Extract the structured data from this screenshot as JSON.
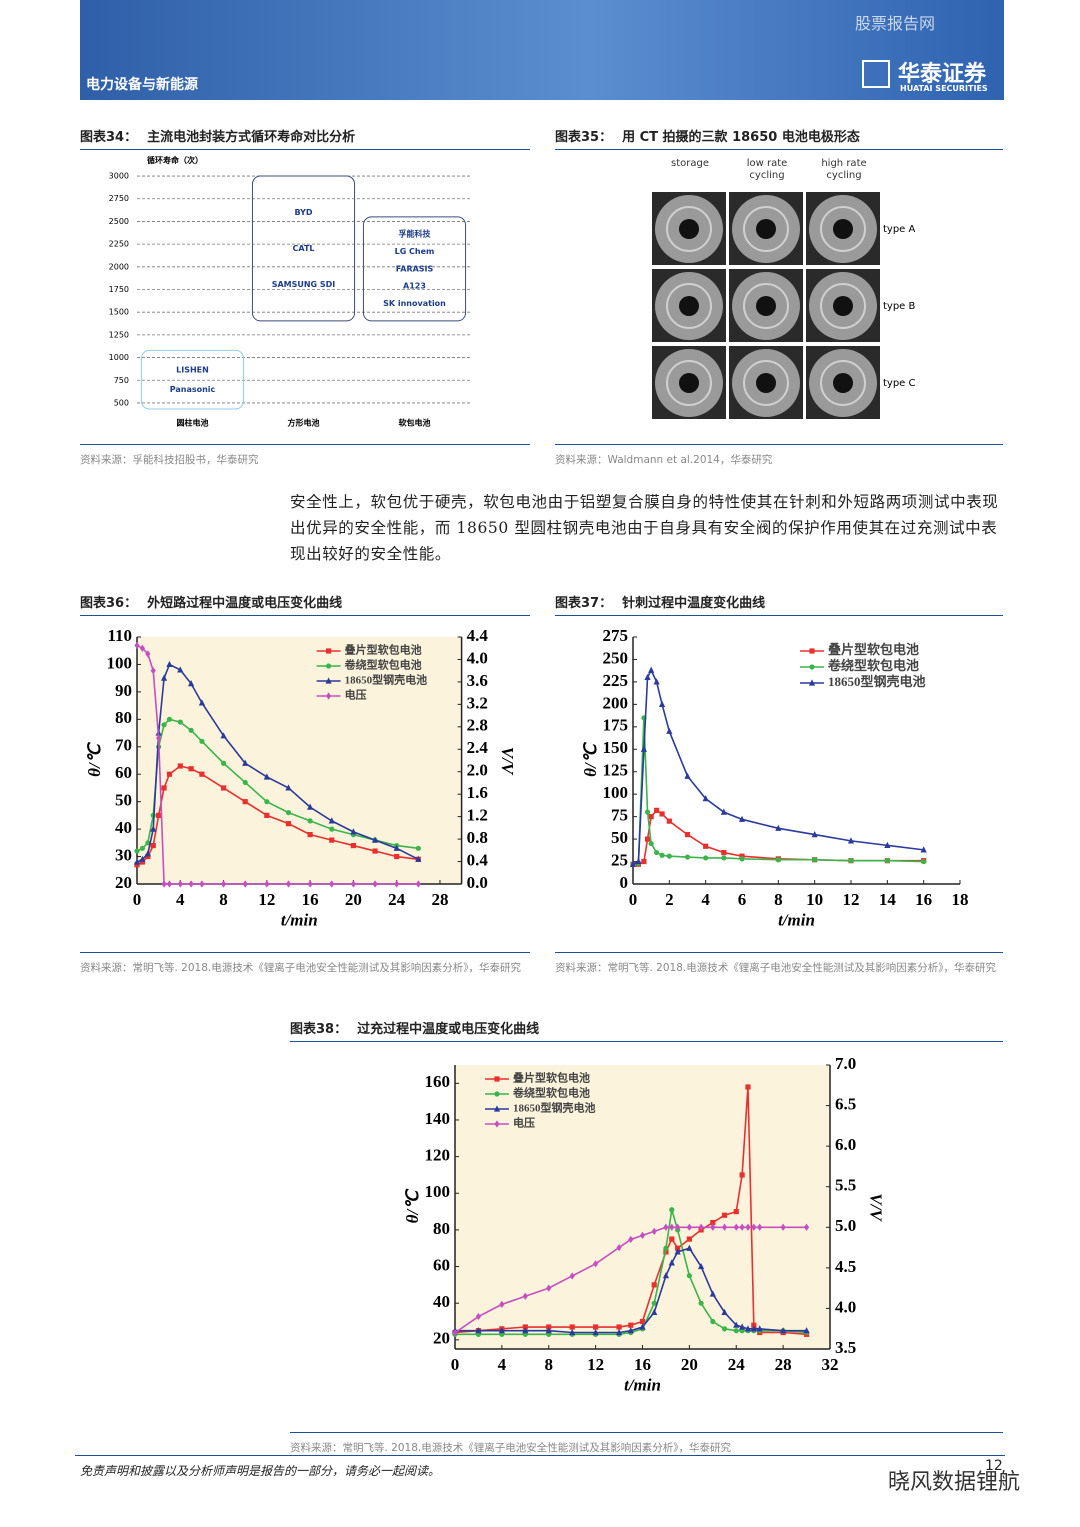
{
  "header": {
    "sector": "电力设备与新能源",
    "watermark": "股票报告网",
    "logo": "华泰证券",
    "logo_en": "HUATAI SECURITIES"
  },
  "paragraph": "安全性上，软包优于硬壳，软包电池由于铝塑复合膜自身的特性使其在针刺和外短路两项测试中表现出优异的安全性能，而 18650 型圆柱钢壳电池由于自身具有安全阀的保护作用使其在过充测试中表现出较好的安全性能。",
  "ct_figure": {
    "figure_label": "图表35：",
    "title": "用 CT 拍摄的三款 18650 电池电极形态",
    "columns": [
      "storage",
      "low rate cycling",
      "high rate cycling"
    ],
    "rows": [
      "type A",
      "type B",
      "type C"
    ],
    "source": "资料来源：Waldmann et al.2014，华泰研究"
  },
  "chart_data": [
    {
      "type": "range",
      "figure_label": "图表34：",
      "title": "主流电池封装方式循环寿命对比分析",
      "y_label": "循环寿命（次）",
      "categories": [
        "圆柱电池",
        "方形电池",
        "软包电池"
      ],
      "low": [
        500,
        1470,
        1470
      ],
      "high": [
        1080,
        3000,
        2550
      ],
      "companies": [
        [
          "LISHEN",
          "Panasonic"
        ],
        [
          "BYD",
          "CATL",
          "SAMSUNG SDI"
        ],
        [
          "孚能科技",
          "LG Chem",
          "FARASIS",
          "A123",
          "SK innovation"
        ]
      ],
      "colors": [
        "#8fd0ea",
        "#3a4d7a",
        "#3a4d7a"
      ],
      "ylim": [
        450,
        3050
      ],
      "yticks": [
        500,
        750,
        1000,
        1250,
        1500,
        1750,
        2000,
        2250,
        2500,
        2750,
        3000
      ],
      "grid": true,
      "source": "资料来源：孚能科技招股书，华泰研究"
    },
    {
      "type": "line",
      "figure_label": "图表36：",
      "title": "外短路过程中温度或电压变化曲线",
      "x_label": "t/min",
      "y_label": "θ/℃",
      "y2_label": "V/V",
      "plot_background": "#fbf3dc",
      "legend": "upper right",
      "x": [
        0,
        0.5,
        1,
        1.5,
        2,
        2.5,
        3,
        4,
        5,
        6,
        8,
        10,
        12,
        14,
        16,
        18,
        20,
        22,
        24,
        26
      ],
      "series": [
        {
          "name": "叠片型软包电池",
          "color": "#e8312f",
          "marker": "square",
          "values": [
            27,
            28,
            30,
            34,
            45,
            55,
            60,
            63,
            62,
            60,
            55,
            50,
            45,
            42,
            38,
            36,
            34,
            32,
            30,
            29
          ]
        },
        {
          "name": "卷绕型软包电池",
          "color": "#3bb44a",
          "marker": "circle",
          "values": [
            32,
            33,
            35,
            45,
            70,
            78,
            80,
            79,
            76,
            72,
            64,
            57,
            50,
            46,
            43,
            40,
            38,
            36,
            34,
            33
          ]
        },
        {
          "name": "18650型钢壳电池",
          "color": "#2b3a9b",
          "marker": "triangle",
          "values": [
            28,
            29,
            31,
            40,
            75,
            95,
            100,
            98,
            93,
            86,
            74,
            64,
            59,
            55,
            48,
            43,
            39,
            36,
            33,
            29
          ]
        },
        {
          "name": "电压",
          "color": "#c54fc2",
          "marker": "diamond",
          "axis": "y2",
          "values": [
            4.25,
            4.2,
            4.1,
            3.8,
            2.6,
            0,
            0,
            0,
            0,
            0,
            0,
            0,
            0,
            0,
            0,
            0,
            0,
            0,
            0,
            0
          ]
        }
      ],
      "xlim": [
        0,
        30
      ],
      "xticks": [
        0,
        4,
        8,
        12,
        16,
        20,
        24,
        28
      ],
      "ylim": [
        20,
        110
      ],
      "yticks": [
        20,
        30,
        40,
        50,
        60,
        70,
        80,
        90,
        100,
        110
      ],
      "y2lim": [
        0,
        4.4
      ],
      "y2ticks": [
        {
          "value": 0,
          "label": "0.0"
        },
        0.4,
        0.8,
        1.2,
        1.6,
        {
          "value": 2,
          "label": "2.0"
        },
        2.4,
        2.8,
        3.2,
        3.6,
        {
          "value": 4,
          "label": "4.0"
        },
        4.4
      ],
      "source": "资料来源：常明飞等. 2018.电源技术《锂离子电池安全性能测试及其影响因素分析》，华泰研究"
    },
    {
      "type": "line",
      "figure_label": "图表37：",
      "title": "针刺过程中温度变化曲线",
      "x_label": "t/min",
      "y_label": "θ/℃",
      "legend": "upper right",
      "x": [
        0,
        0.3,
        0.6,
        0.8,
        1,
        1.3,
        1.6,
        2,
        3,
        4,
        5,
        6,
        8,
        10,
        12,
        14,
        16
      ],
      "series": [
        {
          "name": "叠片型软包电池",
          "color": "#e8312f",
          "marker": "square",
          "values": [
            22,
            22,
            25,
            50,
            75,
            82,
            78,
            70,
            55,
            42,
            35,
            31,
            28,
            27,
            26,
            26,
            26
          ]
        },
        {
          "name": "卷绕型软包电池",
          "color": "#3bb44a",
          "marker": "circle",
          "values": [
            22,
            23,
            185,
            80,
            45,
            35,
            32,
            31,
            30,
            29,
            29,
            28,
            27,
            27,
            26,
            26,
            25
          ]
        },
        {
          "name": "18650型钢壳电池",
          "color": "#2b3a9b",
          "marker": "triangle",
          "values": [
            22,
            25,
            150,
            230,
            238,
            225,
            200,
            170,
            120,
            95,
            80,
            72,
            62,
            55,
            48,
            43,
            38
          ]
        }
      ],
      "xlim": [
        0,
        18
      ],
      "xticks": [
        0,
        2,
        4,
        6,
        8,
        10,
        12,
        14,
        16,
        18
      ],
      "ylim": [
        0,
        275
      ],
      "yticks": [
        0,
        25,
        50,
        75,
        100,
        125,
        150,
        175,
        200,
        225,
        250,
        275
      ],
      "source": "资料来源：常明飞等. 2018.电源技术《锂离子电池安全性能测试及其影响因素分析》，华泰研究"
    },
    {
      "type": "line",
      "figure_label": "图表38：",
      "title": "过充过程中温度或电压变化曲线",
      "x_label": "t/min",
      "y_label": "θ/℃",
      "y2_label": "V/V",
      "plot_background": "#fbf3dc",
      "legend": "upper left",
      "x": [
        0,
        2,
        4,
        6,
        8,
        10,
        12,
        14,
        15,
        16,
        17,
        18,
        18.5,
        19,
        20,
        21,
        22,
        23,
        24,
        24.5,
        25,
        25.5,
        26,
        28,
        30
      ],
      "series": [
        {
          "name": "叠片型软包电池",
          "color": "#e8312f",
          "marker": "square",
          "values": [
            24,
            25,
            26,
            27,
            27,
            27,
            27,
            27,
            28,
            30,
            50,
            68,
            75,
            70,
            75,
            80,
            84,
            88,
            90,
            110,
            158,
            28,
            24,
            24,
            23
          ]
        },
        {
          "name": "卷绕型软包电池",
          "color": "#3bb44a",
          "marker": "circle",
          "values": [
            23,
            23,
            23,
            23,
            23,
            23,
            23,
            23,
            24,
            26,
            40,
            70,
            91,
            80,
            55,
            40,
            30,
            26,
            25,
            25,
            25,
            25,
            25,
            25,
            24
          ]
        },
        {
          "name": "18650型钢壳电池",
          "color": "#2b3a9b",
          "marker": "triangle",
          "values": [
            25,
            25,
            25,
            25,
            25,
            24,
            24,
            24,
            25,
            27,
            35,
            55,
            62,
            68,
            70,
            60,
            45,
            35,
            28,
            27,
            26,
            26,
            26,
            25,
            25
          ]
        },
        {
          "name": "电压",
          "color": "#c54fc2",
          "marker": "diamond",
          "axis": "y2",
          "values": [
            3.7,
            3.9,
            4.05,
            4.15,
            4.25,
            4.4,
            4.55,
            4.75,
            4.85,
            4.9,
            4.95,
            5,
            5,
            5,
            5,
            5,
            5,
            5,
            5,
            5,
            5,
            5,
            5,
            5,
            5
          ]
        }
      ],
      "xlim": [
        0,
        32
      ],
      "xticks": [
        0,
        4,
        8,
        12,
        16,
        20,
        24,
        28,
        32
      ],
      "ylim": [
        15,
        170
      ],
      "yticks": [
        20,
        40,
        60,
        80,
        100,
        120,
        140,
        160
      ],
      "y2lim": [
        3.5,
        7
      ],
      "y2ticks": [
        3.5,
        {
          "value": 4,
          "label": "4.0"
        },
        4.5,
        {
          "value": 5,
          "label": "5.0"
        },
        5.5,
        {
          "value": 6,
          "label": "6.0"
        },
        6.5,
        {
          "value": 7,
          "label": "7.0"
        }
      ],
      "source": "资料来源：常明飞等. 2018.电源技术《锂离子电池安全性能测试及其影响因素分析》，华泰研究"
    }
  ],
  "footer": {
    "disclaimer": "免责声明和披露以及分析师声明是报告的一部分，请务必一起阅读。",
    "page": "12",
    "watermark": "晓风数据锂航"
  }
}
